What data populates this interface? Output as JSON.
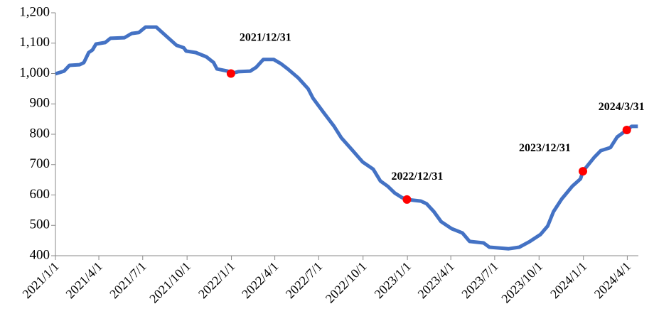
{
  "chart_data": {
    "type": "line",
    "x": [
      "2021-01-01",
      "2021-01-19",
      "2021-01-30",
      "2021-02-20",
      "2021-03-01",
      "2021-03-11",
      "2021-03-19",
      "2021-03-26",
      "2021-04-14",
      "2021-04-25",
      "2021-05-24",
      "2021-06-08",
      "2021-06-23",
      "2021-07-07",
      "2021-07-29",
      "2021-08-21",
      "2021-09-09",
      "2021-09-24",
      "2021-09-29",
      "2021-10-19",
      "2021-11-10",
      "2021-11-25",
      "2021-12-02",
      "2021-12-24",
      "2021-12-31",
      "2022-01-15",
      "2022-02-09",
      "2022-02-21",
      "2022-03-08",
      "2022-03-30",
      "2022-04-14",
      "2022-04-28",
      "2022-05-20",
      "2022-06-09",
      "2022-06-19",
      "2022-07-11",
      "2022-08-02",
      "2022-08-17",
      "2022-09-08",
      "2022-09-30",
      "2022-10-22",
      "2022-11-06",
      "2022-11-21",
      "2022-12-06",
      "2022-12-20",
      "2022-12-31",
      "2023-01-29",
      "2023-02-10",
      "2023-02-25",
      "2023-03-12",
      "2023-04-03",
      "2023-04-25",
      "2023-05-10",
      "2023-06-08",
      "2023-06-20",
      "2023-07-30",
      "2023-08-21",
      "2023-09-12",
      "2023-10-04",
      "2023-10-19",
      "2023-10-31",
      "2023-11-17",
      "2023-12-09",
      "2023-12-26",
      "2023-12-31",
      "2024-01-23",
      "2024-02-06",
      "2024-02-26",
      "2024-03-11",
      "2024-03-31",
      "2024-04-10",
      "2024-04-23"
    ],
    "series": [
      {
        "color": "#4472c4",
        "values": [
          999,
          1008,
          1027,
          1029,
          1036,
          1069,
          1078,
          1097,
          1102,
          1116,
          1118,
          1132,
          1135,
          1153,
          1153,
          1120,
          1093,
          1085,
          1074,
          1069,
          1055,
          1036,
          1015,
          1008,
          1000,
          1006,
          1008,
          1020,
          1046,
          1046,
          1032,
          1015,
          985,
          950,
          919,
          872,
          826,
          788,
          749,
          709,
          685,
          646,
          629,
          606,
          592,
          585,
          580,
          571,
          545,
          512,
          489,
          475,
          447,
          442,
          428,
          423,
          428,
          447,
          470,
          498,
          545,
          587,
          629,
          653,
          678,
          723,
          746,
          756,
          791,
          814,
          826,
          826
        ]
      }
    ],
    "xlim": [
      "2021-01-01",
      "2024-04-24"
    ],
    "xticks": [
      {
        "value": "2021-01-01",
        "label": "2021/1/1"
      },
      {
        "value": "2021-04-01",
        "label": "2021/4/1"
      },
      {
        "value": "2021-07-01",
        "label": "2021/7/1"
      },
      {
        "value": "2021-10-01",
        "label": "2021/10/1"
      },
      {
        "value": "2022-01-01",
        "label": "2022/1/1"
      },
      {
        "value": "2022-04-01",
        "label": "2022/4/1"
      },
      {
        "value": "2022-07-01",
        "label": "2022/7/1"
      },
      {
        "value": "2022-10-01",
        "label": "2022/10/1"
      },
      {
        "value": "2023-01-01",
        "label": "2023/1/1"
      },
      {
        "value": "2023-04-01",
        "label": "2023/4/1"
      },
      {
        "value": "2023-07-01",
        "label": "2023/7/1"
      },
      {
        "value": "2023-10-01",
        "label": "2023/10/1"
      },
      {
        "value": "2024-01-01",
        "label": "2024/1/1"
      },
      {
        "value": "2024-04-01",
        "label": "2024/4/1"
      }
    ],
    "ylim": [
      400,
      1200
    ],
    "yticks": [
      400,
      500,
      600,
      700,
      800,
      900,
      {
        "value": 1000,
        "label": "1,000"
      },
      {
        "value": 1100,
        "label": "1,100"
      },
      {
        "value": 1200,
        "label": "1,200"
      }
    ],
    "annotations": [
      {
        "x": "2021-12-31",
        "y": 1000,
        "label": "2021/12/31",
        "color": "#ff0000"
      },
      {
        "x": "2022-12-31",
        "y": 585,
        "label": "2022/12/31",
        "color": "#ff0000"
      },
      {
        "x": "2023-12-31",
        "y": 678,
        "label": "2023/12/31",
        "color": "#ff0000"
      },
      {
        "x": "2024-03-31",
        "y": 814,
        "label": "2024/3/31",
        "color": "#ff0000"
      }
    ]
  }
}
